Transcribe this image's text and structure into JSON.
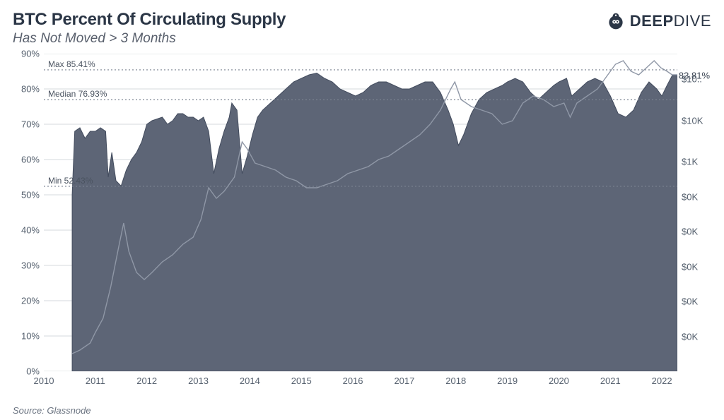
{
  "header": {
    "title": "BTC Percent Of Circulating Supply",
    "subtitle": "Has Not Moved > 3 Months",
    "brand_deep": "DEEP",
    "brand_dive": "DIVE"
  },
  "chart": {
    "type": "area+line",
    "background_color": "#ffffff",
    "area_fill": "#5d6576",
    "area_stroke": "#434c5e",
    "price_line_color": "#8f97a6",
    "grid_color": "#d6d9dc",
    "axis_text_color": "#55606e",
    "refline_color": "#7a8290",
    "x": {
      "min": 2010,
      "max": 2022.3,
      "ticks": [
        2010,
        2011,
        2012,
        2013,
        2014,
        2015,
        2016,
        2017,
        2018,
        2019,
        2020,
        2021,
        2022
      ]
    },
    "y_left": {
      "label_suffix": "%",
      "min": 0,
      "max": 90,
      "ticks": [
        0,
        10,
        20,
        30,
        40,
        50,
        60,
        70,
        80,
        90
      ]
    },
    "y_right": {
      "ticks": [
        {
          "pos_pct": 8,
          "label": "$10.."
        },
        {
          "pos_pct": 21,
          "label": "$10K"
        },
        {
          "pos_pct": 34,
          "label": "$1K"
        },
        {
          "pos_pct": 45,
          "label": "$0K"
        },
        {
          "pos_pct": 56,
          "label": "$0K"
        },
        {
          "pos_pct": 67,
          "label": "$0K"
        },
        {
          "pos_pct": 78,
          "label": "$0K"
        },
        {
          "pos_pct": 89,
          "label": "$0K"
        }
      ]
    },
    "reference_lines": [
      {
        "value": 85.41,
        "label": "Max 85.41%"
      },
      {
        "value": 76.93,
        "label": "Median 76.93%"
      },
      {
        "value": 52.43,
        "label": "Min 52.43%"
      }
    ],
    "callout": {
      "value": 83.81,
      "label": "83.81%"
    },
    "supply_series": [
      [
        2010.55,
        50
      ],
      [
        2010.6,
        68
      ],
      [
        2010.7,
        69
      ],
      [
        2010.8,
        66
      ],
      [
        2010.9,
        68
      ],
      [
        2011.0,
        68
      ],
      [
        2011.1,
        69
      ],
      [
        2011.2,
        68
      ],
      [
        2011.25,
        55
      ],
      [
        2011.32,
        62
      ],
      [
        2011.4,
        54
      ],
      [
        2011.5,
        52.5
      ],
      [
        2011.6,
        57
      ],
      [
        2011.7,
        60
      ],
      [
        2011.8,
        62
      ],
      [
        2011.9,
        65
      ],
      [
        2012.0,
        70
      ],
      [
        2012.1,
        71
      ],
      [
        2012.2,
        71.5
      ],
      [
        2012.3,
        72
      ],
      [
        2012.4,
        70
      ],
      [
        2012.5,
        71
      ],
      [
        2012.6,
        73
      ],
      [
        2012.7,
        73
      ],
      [
        2012.8,
        72
      ],
      [
        2012.9,
        72
      ],
      [
        2013.0,
        71
      ],
      [
        2013.1,
        72
      ],
      [
        2013.2,
        68
      ],
      [
        2013.3,
        56
      ],
      [
        2013.4,
        63
      ],
      [
        2013.5,
        68
      ],
      [
        2013.6,
        72
      ],
      [
        2013.65,
        76
      ],
      [
        2013.75,
        74
      ],
      [
        2013.85,
        56
      ],
      [
        2013.95,
        61
      ],
      [
        2014.05,
        67
      ],
      [
        2014.15,
        72
      ],
      [
        2014.25,
        74
      ],
      [
        2014.4,
        76
      ],
      [
        2014.55,
        78
      ],
      [
        2014.7,
        80
      ],
      [
        2014.85,
        82
      ],
      [
        2015.0,
        83
      ],
      [
        2015.15,
        84
      ],
      [
        2015.3,
        84.5
      ],
      [
        2015.45,
        83
      ],
      [
        2015.6,
        82
      ],
      [
        2015.75,
        80
      ],
      [
        2015.9,
        79
      ],
      [
        2016.05,
        78
      ],
      [
        2016.2,
        79
      ],
      [
        2016.35,
        81
      ],
      [
        2016.5,
        82
      ],
      [
        2016.65,
        82
      ],
      [
        2016.8,
        81
      ],
      [
        2016.95,
        80
      ],
      [
        2017.1,
        80
      ],
      [
        2017.25,
        81
      ],
      [
        2017.4,
        82
      ],
      [
        2017.55,
        82
      ],
      [
        2017.7,
        79
      ],
      [
        2017.85,
        74
      ],
      [
        2017.95,
        70
      ],
      [
        2018.05,
        64
      ],
      [
        2018.15,
        67
      ],
      [
        2018.3,
        73
      ],
      [
        2018.45,
        77
      ],
      [
        2018.6,
        79
      ],
      [
        2018.75,
        80
      ],
      [
        2018.9,
        81
      ],
      [
        2019.0,
        82
      ],
      [
        2019.15,
        83
      ],
      [
        2019.3,
        82
      ],
      [
        2019.45,
        79
      ],
      [
        2019.6,
        77
      ],
      [
        2019.75,
        79
      ],
      [
        2019.9,
        81
      ],
      [
        2020.0,
        82
      ],
      [
        2020.15,
        83
      ],
      [
        2020.25,
        78
      ],
      [
        2020.4,
        80
      ],
      [
        2020.55,
        82
      ],
      [
        2020.7,
        83
      ],
      [
        2020.85,
        82
      ],
      [
        2021.0,
        78
      ],
      [
        2021.15,
        73
      ],
      [
        2021.3,
        72
      ],
      [
        2021.45,
        74
      ],
      [
        2021.6,
        79
      ],
      [
        2021.75,
        82
      ],
      [
        2021.9,
        80
      ],
      [
        2022.0,
        78
      ],
      [
        2022.1,
        81
      ],
      [
        2022.2,
        83.81
      ],
      [
        2022.3,
        83.81
      ]
    ],
    "price_series": [
      [
        2010.55,
        5
      ],
      [
        2010.7,
        6
      ],
      [
        2010.9,
        8
      ],
      [
        2011.0,
        11
      ],
      [
        2011.15,
        15
      ],
      [
        2011.3,
        24
      ],
      [
        2011.45,
        35
      ],
      [
        2011.55,
        42
      ],
      [
        2011.65,
        34
      ],
      [
        2011.8,
        28
      ],
      [
        2011.95,
        26
      ],
      [
        2012.1,
        28
      ],
      [
        2012.3,
        31
      ],
      [
        2012.5,
        33
      ],
      [
        2012.7,
        36
      ],
      [
        2012.9,
        38
      ],
      [
        2013.05,
        43
      ],
      [
        2013.2,
        52
      ],
      [
        2013.35,
        49
      ],
      [
        2013.5,
        51
      ],
      [
        2013.7,
        55
      ],
      [
        2013.85,
        65
      ],
      [
        2013.95,
        63
      ],
      [
        2014.1,
        59
      ],
      [
        2014.3,
        58
      ],
      [
        2014.5,
        57
      ],
      [
        2014.7,
        55
      ],
      [
        2014.9,
        54
      ],
      [
        2015.1,
        52
      ],
      [
        2015.3,
        52
      ],
      [
        2015.5,
        53
      ],
      [
        2015.7,
        54
      ],
      [
        2015.9,
        56
      ],
      [
        2016.1,
        57
      ],
      [
        2016.3,
        58
      ],
      [
        2016.5,
        60
      ],
      [
        2016.7,
        61
      ],
      [
        2016.9,
        63
      ],
      [
        2017.1,
        65
      ],
      [
        2017.3,
        67
      ],
      [
        2017.5,
        70
      ],
      [
        2017.7,
        74
      ],
      [
        2017.9,
        80
      ],
      [
        2017.98,
        82
      ],
      [
        2018.1,
        77
      ],
      [
        2018.3,
        75
      ],
      [
        2018.5,
        74
      ],
      [
        2018.7,
        73
      ],
      [
        2018.9,
        70
      ],
      [
        2019.1,
        71
      ],
      [
        2019.3,
        76
      ],
      [
        2019.5,
        78
      ],
      [
        2019.7,
        77
      ],
      [
        2019.9,
        75
      ],
      [
        2020.1,
        76
      ],
      [
        2020.22,
        72
      ],
      [
        2020.35,
        76
      ],
      [
        2020.55,
        78
      ],
      [
        2020.75,
        80
      ],
      [
        2020.95,
        84
      ],
      [
        2021.1,
        87
      ],
      [
        2021.25,
        88
      ],
      [
        2021.4,
        85
      ],
      [
        2021.55,
        84
      ],
      [
        2021.7,
        86
      ],
      [
        2021.85,
        88
      ],
      [
        2021.98,
        86
      ],
      [
        2022.1,
        85
      ],
      [
        2022.2,
        84
      ],
      [
        2022.3,
        84
      ]
    ]
  },
  "source": "Source: Glassnode"
}
